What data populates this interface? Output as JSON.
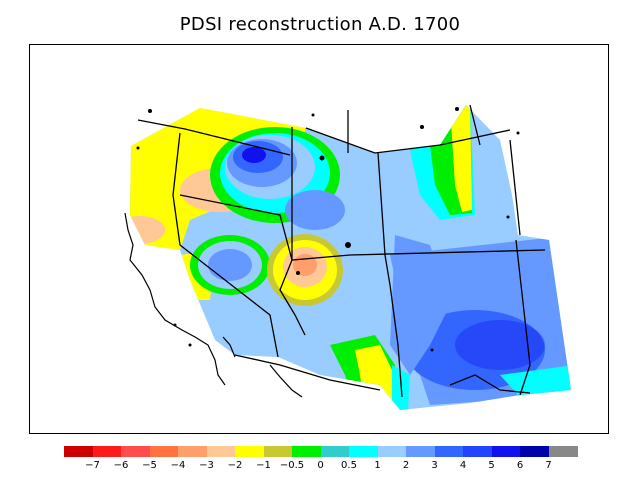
{
  "title": "PDSI reconstruction A.D. 1700",
  "legend": {
    "colors": [
      "#cc0000",
      "#ff1a1a",
      "#ff4d4d",
      "#ff7340",
      "#ff9f6b",
      "#ffc896",
      "#ffff00",
      "#c8c832",
      "#00ee00",
      "#33cccc",
      "#00ffff",
      "#99ccff",
      "#6699ff",
      "#3366ff",
      "#2244ff",
      "#1111ee",
      "#0000aa",
      "#888888"
    ],
    "labels": [
      "−7",
      "−6",
      "−5",
      "−4",
      "−3",
      "−2",
      "−1",
      "−0.5",
      "0",
      "0.5",
      "1",
      "2",
      "3",
      "4",
      "5",
      "6",
      "7"
    ]
  },
  "map_colors": {
    "light_blue": "#99ccff",
    "mid_blue": "#6699ff",
    "blue": "#3366ff",
    "deep_blue": "#1111ee",
    "navy": "#0000aa",
    "cyan": "#00ffff",
    "teal": "#33cccc",
    "green": "#00ee00",
    "olive": "#c8c832",
    "yellow": "#ffff00",
    "peach": "#ffc896",
    "salmon": "#ff9f6b"
  }
}
